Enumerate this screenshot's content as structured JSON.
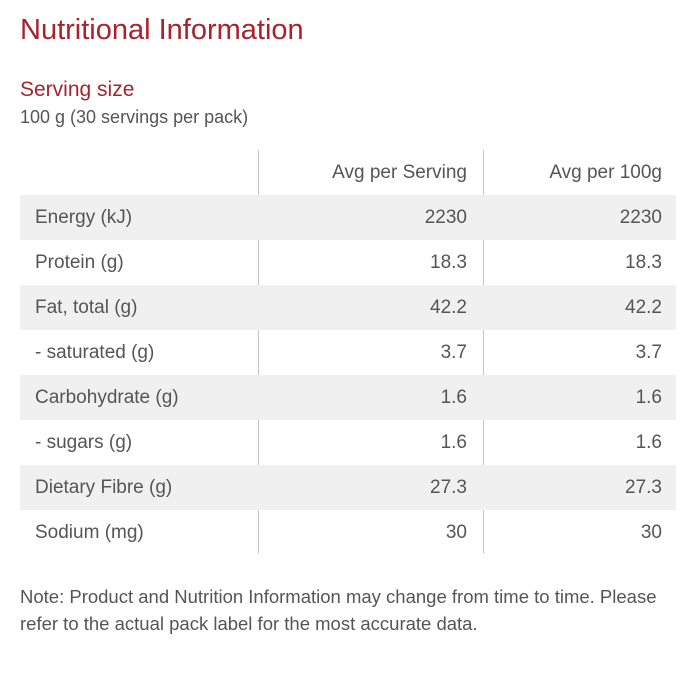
{
  "title": "Nutritional Information",
  "serving": {
    "heading": "Serving size",
    "value": "100 g (30 servings per pack)"
  },
  "table": {
    "columns": [
      "",
      "Avg per Serving",
      "Avg per 100g"
    ],
    "rows": [
      {
        "label": "Energy (kJ)",
        "serving": "2230",
        "per100g": "2230"
      },
      {
        "label": "Protein (g)",
        "serving": "18.3",
        "per100g": "18.3"
      },
      {
        "label": "Fat, total (g)",
        "serving": "42.2",
        "per100g": "42.2"
      },
      {
        "label": "- saturated (g)",
        "serving": "3.7",
        "per100g": "3.7"
      },
      {
        "label": "Carbohydrate (g)",
        "serving": "1.6",
        "per100g": "1.6"
      },
      {
        "label": "- sugars (g)",
        "serving": "1.6",
        "per100g": "1.6"
      },
      {
        "label": "Dietary Fibre (g)",
        "serving": "27.3",
        "per100g": "27.3"
      },
      {
        "label": "Sodium (mg)",
        "serving": "30",
        "per100g": "30"
      }
    ]
  },
  "note": "Note: Product and Nutrition Information may change from time to time. Please refer to the actual pack label for the most accurate data.",
  "colors": {
    "accent": "#a8232d",
    "text": "#555555",
    "row_shade": "#f0f0f0",
    "divider": "#c4c4c4"
  }
}
